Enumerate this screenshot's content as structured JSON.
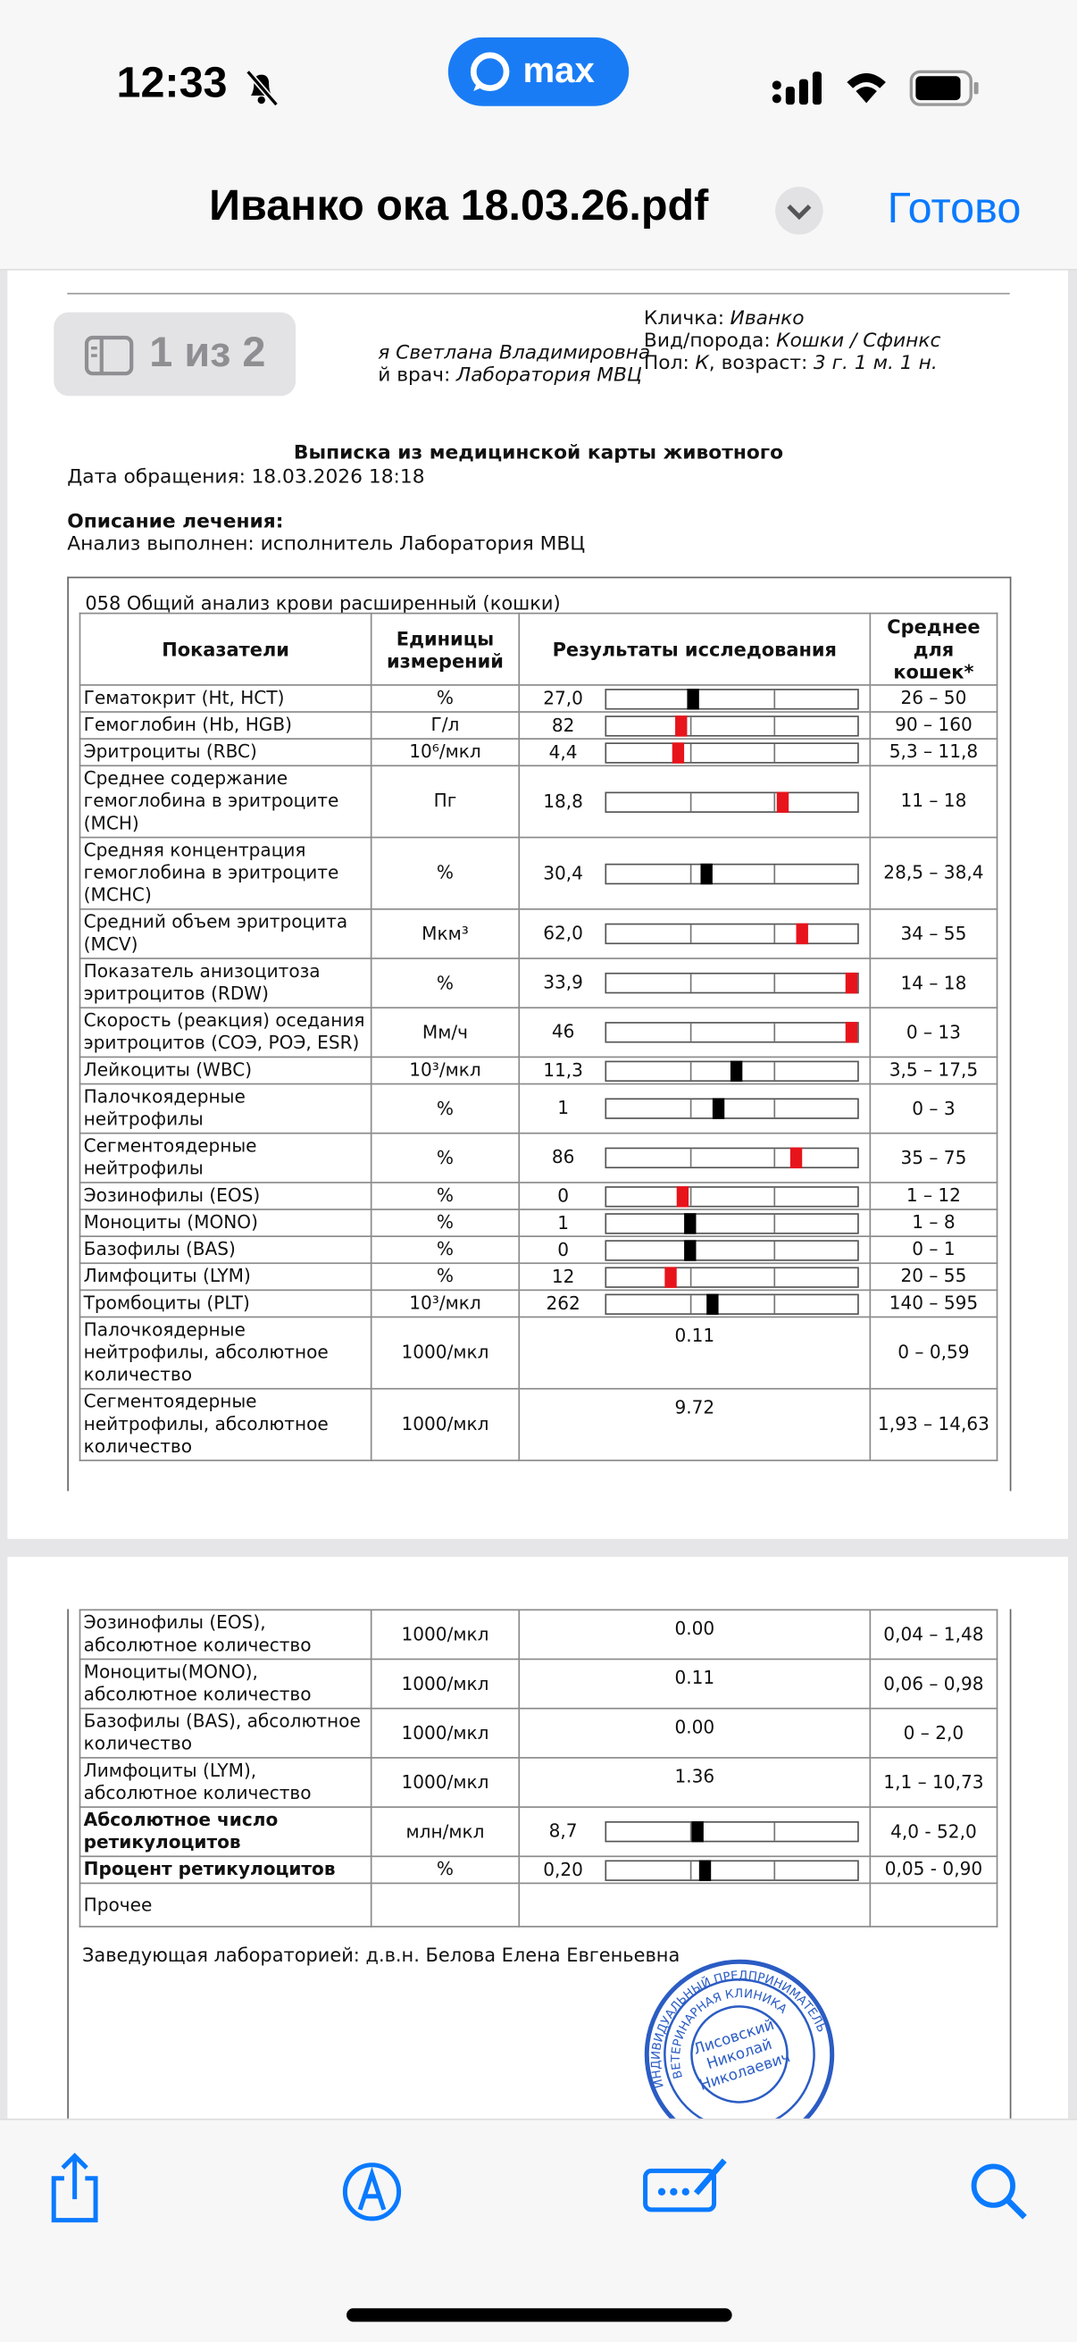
{
  "status_bar": {
    "time": "12:33",
    "app": "max"
  },
  "nav": {
    "title": "Иванко ока 18.03.26.pdf",
    "done": "Готово"
  },
  "page_indicator": "1 из 2",
  "header": {
    "owner_fragment": "я Светлана Владимировна",
    "doctor_label": "й врач:",
    "doctor": "Лаборатория МВЦ",
    "pet_name_label": "Кличка:",
    "pet_name": "Иванко",
    "breed_label": "Вид/порода:",
    "breed": "Кошки / Сфинкс",
    "sex_label": "Пол:",
    "sex": "К",
    "age_label": ", возраст:",
    "age": "3 г. 1 м. 1 н."
  },
  "document": {
    "title": "Выписка из медицинской карты животного",
    "date_label": "Дата обращения:",
    "date": "18.03.2026 18:18",
    "treatment_heading": "Описание лечения:",
    "treatment": "Анализ выполнен: исполнитель Лаборатория МВЦ",
    "caption": "058 Общий анализ крови расширенный (кошки)",
    "columns": [
      "Показатели",
      "Единицы измерений",
      "Результаты исследования",
      "Среднее для кошек*"
    ],
    "rows": [
      {
        "name": "Гематокрит (Ht, HCT)",
        "unit": "%",
        "value": 27.0,
        "value_label": "27,0",
        "ref": [
          26,
          50
        ],
        "ref_label": "26 – 50",
        "marker_color": "#000000"
      },
      {
        "name": "Гемоглобин (Hb, HGB)",
        "unit": "Г/л",
        "value": 82,
        "value_label": "82",
        "ref": [
          90,
          160
        ],
        "ref_label": "90 – 160",
        "marker_color": "#e8141c"
      },
      {
        "name": "Эритроциты (RBC)",
        "unit": "10⁶/мкл",
        "value": 4.4,
        "value_label": "4,4",
        "ref": [
          5.3,
          11.8
        ],
        "ref_label": "5,3 – 11,8",
        "marker_color": "#e8141c"
      },
      {
        "name": "Среднее содержание гемоглобина в эритроците (МСН)",
        "unit": "Пг",
        "value": 18.8,
        "value_label": "18,8",
        "ref": [
          11,
          18
        ],
        "ref_label": "11 – 18",
        "marker_color": "#e8141c"
      },
      {
        "name": "Средняя концентрация гемоглобина в эритроците (МСНС)",
        "unit": "%",
        "value": 30.4,
        "value_label": "30,4",
        "ref": [
          28.5,
          38.4
        ],
        "ref_label": "28,5 – 38,4",
        "marker_color": "#000000"
      },
      {
        "name": "Средний объем эритроцита (MCV)",
        "unit": "Мкм³",
        "value": 62.0,
        "value_label": "62,0",
        "ref": [
          34,
          55
        ],
        "ref_label": "34 – 55",
        "marker_color": "#e8141c"
      },
      {
        "name": "Показатель анизоцитоза эритроцитов (RDW)",
        "unit": "%",
        "value": 33.9,
        "value_label": "33,9",
        "ref": [
          14,
          18
        ],
        "ref_label": "14 – 18",
        "marker_color": "#e8141c"
      },
      {
        "name": "Скорость (реакция) оседания эритроцитов (СОЭ, РОЭ, ESR)",
        "unit": "Мм/ч",
        "value": 46,
        "value_label": "46",
        "ref": [
          0,
          13
        ],
        "ref_label": "0 – 13",
        "marker_color": "#e8141c"
      },
      {
        "name": "Лейкоциты (WBC)",
        "unit": "10³/мкл",
        "value": 11.3,
        "value_label": "11,3",
        "ref": [
          3.5,
          17.5
        ],
        "ref_label": "3,5 – 17,5",
        "marker_color": "#000000"
      },
      {
        "name": "Палочкоядерные нейтрофилы",
        "unit": "%",
        "value": 1,
        "value_label": "1",
        "ref": [
          0,
          3
        ],
        "ref_label": "0 – 3",
        "marker_color": "#000000"
      },
      {
        "name": "Сегментоядерные нейтрофилы",
        "unit": "%",
        "value": 86,
        "value_label": "86",
        "ref": [
          35,
          75
        ],
        "ref_label": "35 –  75",
        "marker_color": "#e8141c"
      },
      {
        "name": "Эозинофилы (EOS)",
        "unit": "%",
        "value": 0,
        "value_label": "0",
        "ref": [
          1,
          12
        ],
        "ref_label": "1 – 12",
        "marker_color": "#e8141c"
      },
      {
        "name": "Моноциты (MONO)",
        "unit": "%",
        "value": 1,
        "value_label": "1",
        "ref": [
          1,
          8
        ],
        "ref_label": "1 – 8",
        "marker_color": "#000000"
      },
      {
        "name": "Базофилы (BAS)",
        "unit": "%",
        "value": 0,
        "value_label": "0",
        "ref": [
          0,
          1
        ],
        "ref_label": "0 – 1",
        "marker_color": "#000000"
      },
      {
        "name": "Лимфоциты (LYM)",
        "unit": "%",
        "value": 12,
        "value_label": "12",
        "ref": [
          20,
          55
        ],
        "ref_label": "20 – 55",
        "marker_color": "#e8141c"
      },
      {
        "name": "Тромбоциты (PLT)",
        "unit": "10³/мкл",
        "value": 262,
        "value_label": "262",
        "ref": [
          140,
          595
        ],
        "ref_label": "140 – 595",
        "marker_color": "#000000"
      },
      {
        "name": "Палочкоядерные нейтрофилы, абсолютное количество",
        "unit": "1000/мкл",
        "result": "0.11",
        "ref_label": "0 – 0,59"
      },
      {
        "name": "Сегментоядерные нейтрофилы, абсолютное количество",
        "unit": "1000/мкл",
        "result": "9.72",
        "ref_label": "1,93 – 14,63"
      }
    ],
    "rows_page2": [
      {
        "name": "Эозинофилы (EOS), абсолютное количество",
        "unit": "1000/мкл",
        "result": "0.00",
        "ref_label": "0,04 – 1,48"
      },
      {
        "name": "Моноциты(MONO), абсолютное количество",
        "unit": "1000/мкл",
        "result": "0.11",
        "ref_label": "0,06 – 0,98"
      },
      {
        "name": "Базофилы (BAS), абсолютное количество",
        "unit": "1000/мкл",
        "result": "0.00",
        "ref_label": "0 – 2,0"
      },
      {
        "name": "Лимфоциты (LYM), абсолютное количество",
        "unit": "1000/мкл",
        "result": "1.36",
        "ref_label": "1,1 – 10,73"
      },
      {
        "name": "Абсолютное число ретикулоцитов",
        "bold": true,
        "unit": "млн/мкл",
        "value": 8.7,
        "value_label": "8,7",
        "ref": [
          4.0,
          52.0
        ],
        "ref_label": "4,0 - 52,0",
        "marker_color": "#000000"
      },
      {
        "name": "Процент ретикулоцитов",
        "bold": true,
        "unit": "%",
        "value": 0.2,
        "value_label": "0,20",
        "ref": [
          0.05,
          0.9
        ],
        "ref_label": "0,05 - 0,90",
        "marker_color": "#000000"
      },
      {
        "name": "Прочее"
      }
    ],
    "signature": "Заведующая лабораторией: д.в.н. Белова Елена Евгеньевна",
    "stamp": {
      "ring_top": "ИНДИВИДУАЛЬНЫЙ ПРЕДПРИНИМАТЕЛЬ",
      "ring_inner": "ВЕТЕРИНАРНАЯ КЛИНИКА",
      "name": [
        "Лисовский",
        "Николай",
        "Николаевич"
      ]
    }
  }
}
